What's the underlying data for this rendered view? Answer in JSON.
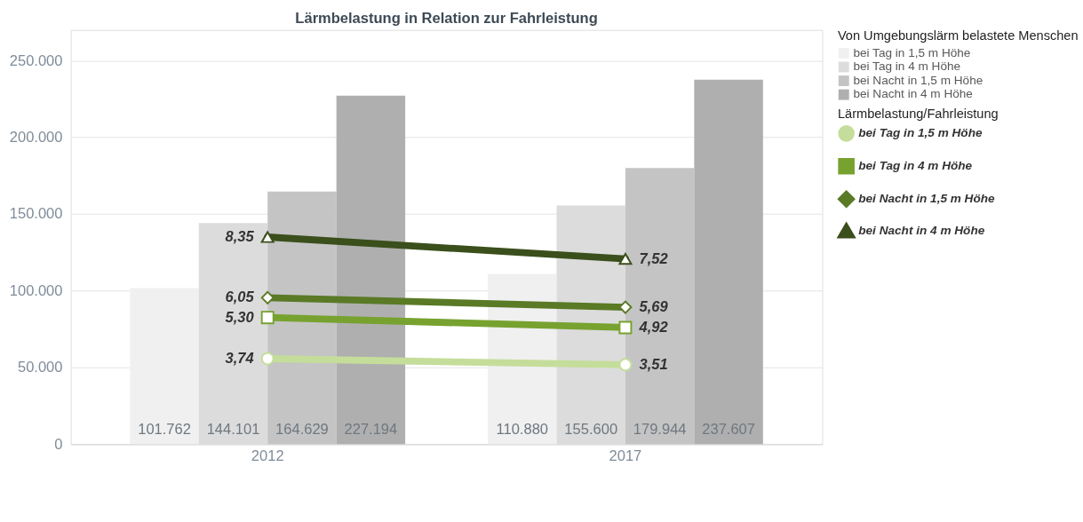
{
  "chart_data": {
    "type": "bar",
    "title": "Lärmbelastung in Relation zur Fahrleistung",
    "categories": [
      "2012",
      "2017"
    ],
    "legend_title": "Von Umgebungslärm belastete Menschen",
    "series": [
      {
        "name": "bei Tag in 1,5 m Höhe",
        "color": "#f0f0f0",
        "values": [
          101762,
          110880
        ],
        "value_labels": [
          "101.762",
          "110.880"
        ]
      },
      {
        "name": "bei Tag in 4 m Höhe",
        "color": "#dcdcdc",
        "values": [
          144101,
          155600
        ],
        "value_labels": [
          "144.101",
          "155.600"
        ]
      },
      {
        "name": "bei Nacht in 1,5 m Höhe",
        "color": "#c4c4c4",
        "values": [
          164629,
          179944
        ],
        "value_labels": [
          "164.629",
          "179.944"
        ]
      },
      {
        "name": "bei Nacht in 4 m Höhe",
        "color": "#afafaf",
        "values": [
          227194,
          237607
        ],
        "value_labels": [
          "227.194",
          "237.607"
        ]
      },
      {
        "name": "bei Tag in 1,5 m Höhe",
        "type": "line",
        "axis": "y2",
        "marker": "circle",
        "color": "#c5dd9a",
        "values": [
          3.74,
          3.51
        ],
        "value_labels": [
          "3,74",
          "3,51"
        ]
      },
      {
        "name": "bei Tag in 4 m Höhe",
        "type": "line",
        "axis": "y2",
        "marker": "square",
        "color": "#77a22f",
        "values": [
          5.3,
          4.92
        ],
        "value_labels": [
          "5,30",
          "4,92"
        ]
      },
      {
        "name": "bei Nacht in 1,5 m Höhe",
        "type": "line",
        "axis": "y2",
        "marker": "diamond",
        "color": "#5a7a26",
        "values": [
          6.05,
          5.69
        ],
        "value_labels": [
          "6,05",
          "5,69"
        ]
      },
      {
        "name": "bei Nacht in 4 m Höhe",
        "type": "line",
        "axis": "y2",
        "marker": "triangle",
        "color": "#3a4f1c",
        "values": [
          8.35,
          7.52
        ],
        "value_labels": [
          "8,35",
          "7,52"
        ]
      }
    ],
    "annotations": [
      "Lärmbelastung/Fahrleistung"
    ],
    "ylim": [
      0,
      270000
    ],
    "yticks": [
      {
        "value": 0,
        "label": "0"
      },
      {
        "value": 50000,
        "label": "50.000"
      },
      {
        "value": 100000,
        "label": "100.000"
      },
      {
        "value": 150000,
        "label": "150.000"
      },
      {
        "value": 200000,
        "label": "200.000"
      },
      {
        "value": 250000,
        "label": "250.000"
      }
    ],
    "y2lim": [
      0.5,
      16.2
    ],
    "grid": "y",
    "legend": "right"
  }
}
